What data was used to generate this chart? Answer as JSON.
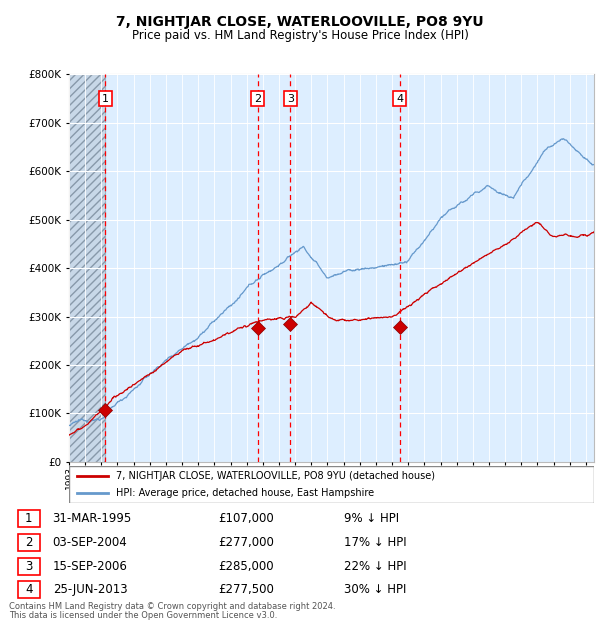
{
  "title": "7, NIGHTJAR CLOSE, WATERLOOVILLE, PO8 9YU",
  "subtitle": "Price paid vs. HM Land Registry's House Price Index (HPI)",
  "legend_label_red": "7, NIGHTJAR CLOSE, WATERLOOVILLE, PO8 9YU (detached house)",
  "legend_label_blue": "HPI: Average price, detached house, East Hampshire",
  "footer1": "Contains HM Land Registry data © Crown copyright and database right 2024.",
  "footer2": "This data is licensed under the Open Government Licence v3.0.",
  "red_color": "#cc0000",
  "blue_color": "#6699cc",
  "bg_plot": "#ddeeff",
  "sale_points": [
    {
      "label": "1",
      "date_x": 1995.25,
      "price": 107000
    },
    {
      "label": "2",
      "date_x": 2004.67,
      "price": 277000
    },
    {
      "label": "3",
      "date_x": 2006.71,
      "price": 285000
    },
    {
      "label": "4",
      "date_x": 2013.48,
      "price": 277500
    }
  ],
  "table_rows": [
    {
      "num": "1",
      "date": "31-MAR-1995",
      "price": "£107,000",
      "hpi": "9% ↓ HPI"
    },
    {
      "num": "2",
      "date": "03-SEP-2004",
      "price": "£277,000",
      "hpi": "17% ↓ HPI"
    },
    {
      "num": "3",
      "date": "15-SEP-2006",
      "price": "£285,000",
      "hpi": "22% ↓ HPI"
    },
    {
      "num": "4",
      "date": "25-JUN-2013",
      "price": "£277,500",
      "hpi": "30% ↓ HPI"
    }
  ],
  "ylim": [
    0,
    800000
  ],
  "xlim_start": 1993.0,
  "xlim_end": 2025.5
}
